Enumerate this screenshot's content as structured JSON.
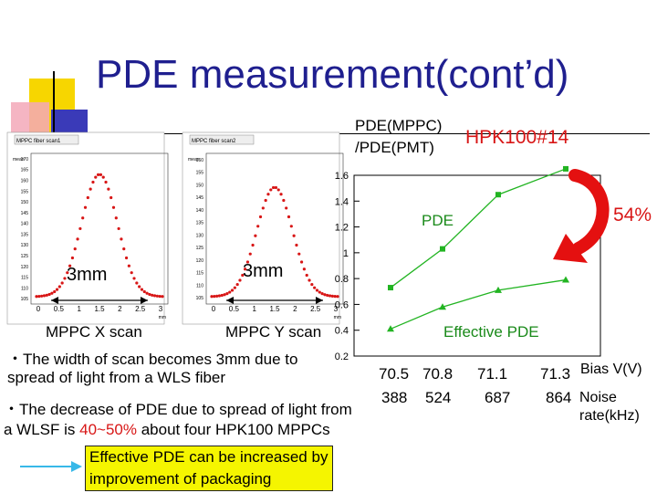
{
  "slide": {
    "title": "PDE measurement(cont’d)"
  },
  "left_plots": {
    "panel1_title": "MPPC fiber scan1",
    "panel2_title": "MPPC fiber scan2",
    "y_axis_label": "mean",
    "x_axis_unit": "mm",
    "x_ticks": [
      "0",
      "0.5",
      "1",
      "1.5",
      "2",
      "2.5",
      "3"
    ],
    "panel1_y_ticks": [
      "105",
      "110",
      "115",
      "120",
      "125",
      "130",
      "135",
      "140",
      "145",
      "150",
      "155",
      "160",
      "165",
      "170"
    ],
    "panel2_y_ticks": [
      "105",
      "110",
      "115",
      "120",
      "125",
      "130",
      "135",
      "140",
      "145",
      "150",
      "155",
      "160"
    ],
    "width_label_1": "3mm",
    "width_label_2": "3mm",
    "caption_x": "MPPC X scan",
    "caption_y": "MPPC Y scan"
  },
  "bullets": {
    "bullet1": "・The width of scan becomes 3mm due to\nspread of light from a WLS fiber",
    "bullet2_prefix": "・The decrease of PDE due to spread of light from\na WLSF is ",
    "bullet2_highlight": "40~50%",
    "bullet2_suffix": " about four HPK100 MPPCs"
  },
  "callout": {
    "text": "Effective PDE can be increased by improvement of packaging"
  },
  "chart_meta": {
    "ylabel_line1": "PDE(MPPC)",
    "ylabel_line2": "/PDE(PMT)",
    "device_label": "HPK100#14",
    "series1_label": "PDE",
    "series2_label": "Effective PDE",
    "drop_label": "54%",
    "x_label_bias": "Bias V(V)",
    "x_label_noise_line1": "Noise",
    "x_label_noise_line2": "rate(kHz)"
  },
  "chart_data": {
    "type": "line",
    "x": [
      70.5,
      70.8,
      71.1,
      71.3
    ],
    "x_tick_labels": [
      "70.5",
      "70.8",
      "71.1",
      "71.3"
    ],
    "noise_rate_labels": [
      "388",
      "524",
      "687",
      "864"
    ],
    "ylim": [
      0.2,
      1.6
    ],
    "y_ticks": [
      "0.2",
      "0.4",
      "0.6",
      "0.8",
      "1",
      "1.2",
      "1.4",
      "1.6"
    ],
    "grid": false,
    "series": [
      {
        "name": "PDE",
        "values": [
          0.73,
          1.03,
          1.45,
          1.65
        ],
        "color": "#22b422",
        "marker": "square"
      },
      {
        "name": "Effective PDE",
        "values": [
          0.41,
          0.58,
          0.71,
          0.79
        ],
        "color": "#22b422",
        "marker": "triangle"
      }
    ]
  },
  "colors": {
    "title": "#1f1f8f",
    "highlight": "#d81616",
    "arrow": "#e41010",
    "plot_line": "#d81616",
    "callout_bg": "#f5f500",
    "left_arrow": "#38b8e8"
  }
}
